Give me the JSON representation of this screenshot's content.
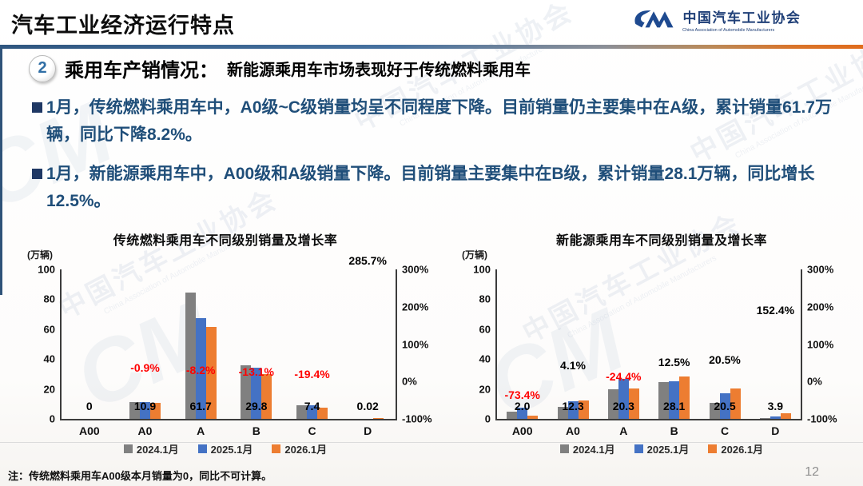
{
  "header": {
    "title": "汽车工业经济运行特点",
    "logo": {
      "org_cn": "中国汽车工业协会",
      "org_en": "China Association of Automobile Manufacturers"
    }
  },
  "section": {
    "number": "2",
    "heading": "乘用车产销情况：",
    "subheading": "新能源乘用车市场表现好于传统燃料乘用车"
  },
  "bullets": [
    "1月，传统燃料乘用车中，A0级~C级销量均呈不同程度下降。目前销量仍主要集中在A级，累计销量61.7万辆，同比下降8.2%。",
    "1月，新能源乘用车中，A00级和A级销量下降。目前销量主要集中在B级，累计销量28.1万辆，同比增长12.5%。"
  ],
  "footnote": "注：传统燃料乘用车A00级本月销量为0，同比不可计算。",
  "page_number": "12",
  "watermark": {
    "text_cn": "中国汽车工业协会",
    "text_en": "China Association of Automobile Manufacturers",
    "mark": "CM"
  },
  "colors": {
    "series_2024": "#808080",
    "series_2025": "#4472c4",
    "series_2026": "#ed7d31",
    "growth_negative": "#ff0000",
    "growth_positive": "#000000",
    "bullet_text": "#1f4e79",
    "divider_blue": "#2f567f",
    "divider_orange": "#e06c1c"
  },
  "chart_data": [
    {
      "type": "bar",
      "title": "传统燃料乘用车不同级别销量及增长率",
      "unit_label": "(万辆)",
      "categories": [
        "A00",
        "A0",
        "A",
        "B",
        "C",
        "D"
      ],
      "series": [
        {
          "name": "2024.1月",
          "color": "#808080",
          "values": [
            0,
            11.5,
            84.5,
            36.0,
            9.0,
            0
          ]
        },
        {
          "name": "2025.1月",
          "color": "#4472c4",
          "values": [
            0,
            11.0,
            67.2,
            34.3,
            9.2,
            0
          ]
        },
        {
          "name": "2026.1月",
          "color": "#ed7d31",
          "values": [
            0,
            10.9,
            61.7,
            29.8,
            7.4,
            0.02
          ]
        }
      ],
      "value_labels": [
        "0",
        "10.9",
        "61.7",
        "29.8",
        "7.4",
        "0.02"
      ],
      "growth_labels": [
        {
          "text": "",
          "value": null,
          "color": "#000000"
        },
        {
          "text": "-0.9%",
          "value": -0.9,
          "color": "#ff0000"
        },
        {
          "text": "-8.2%",
          "value": -8.2,
          "color": "#ff0000"
        },
        {
          "text": "-13.1%",
          "value": -13.1,
          "color": "#ff0000"
        },
        {
          "text": "-19.4%",
          "value": -19.4,
          "color": "#ff0000"
        },
        {
          "text": "285.7%",
          "value": 285.7,
          "color": "#000000"
        }
      ],
      "y_left": {
        "ticks": [
          0,
          20,
          40,
          60,
          80,
          100
        ],
        "max": 100
      },
      "y_right": {
        "ticks": [
          "-100%",
          "0%",
          "100%",
          "200%",
          "300%"
        ],
        "min": -100,
        "max": 300
      },
      "legend_position": "bottom",
      "grid": false
    },
    {
      "type": "bar",
      "title": "新能源乘用车不同级别销量及增长率",
      "unit_label": "(万辆)",
      "categories": [
        "A00",
        "A0",
        "A",
        "B",
        "C",
        "D"
      ],
      "series": [
        {
          "name": "2024.1月",
          "color": "#808080",
          "values": [
            4.8,
            8.0,
            20.0,
            24.5,
            10.5,
            0.3
          ]
        },
        {
          "name": "2025.1月",
          "color": "#4472c4",
          "values": [
            7.5,
            11.8,
            26.9,
            25.0,
            17.0,
            1.5
          ]
        },
        {
          "name": "2026.1月",
          "color": "#ed7d31",
          "values": [
            2.0,
            12.3,
            20.3,
            28.1,
            20.5,
            3.9
          ]
        }
      ],
      "value_labels": [
        "2.0",
        "12.3",
        "20.3",
        "28.1",
        "20.5",
        "3.9"
      ],
      "growth_labels": [
        {
          "text": "-73.4%",
          "value": -73.4,
          "color": "#ff0000"
        },
        {
          "text": "4.1%",
          "value": 4.1,
          "color": "#000000"
        },
        {
          "text": "-24.4%",
          "value": -24.4,
          "color": "#ff0000"
        },
        {
          "text": "12.5%",
          "value": 12.5,
          "color": "#000000"
        },
        {
          "text": "20.5%",
          "value": 20.5,
          "color": "#000000"
        },
        {
          "text": "152.4%",
          "value": 152.4,
          "color": "#000000"
        }
      ],
      "y_left": {
        "ticks": [
          0,
          20,
          40,
          60,
          80,
          100
        ],
        "max": 100
      },
      "y_right": {
        "ticks": [
          "-100%",
          "0%",
          "100%",
          "200%",
          "300%"
        ],
        "min": -100,
        "max": 300
      },
      "legend_position": "bottom",
      "grid": false
    }
  ]
}
